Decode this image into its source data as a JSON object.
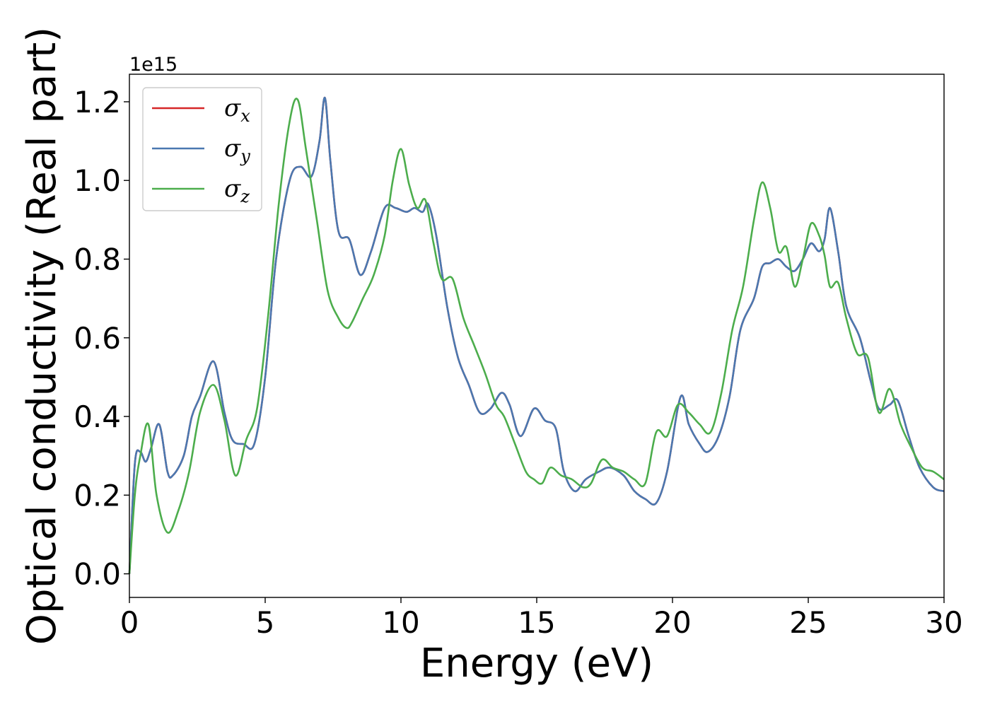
{
  "chart_data": {
    "type": "line",
    "title": "",
    "xlabel": "Energy (eV)",
    "ylabel": "Optical conductivity (Real part)",
    "y_offset_label": "1e15",
    "y_scale": 1000000000000000.0,
    "xlim": [
      0,
      30
    ],
    "ylim": [
      -0.06,
      1.27
    ],
    "xticks": [
      0,
      5,
      10,
      15,
      20,
      25,
      30
    ],
    "xtick_labels": [
      "0",
      "5",
      "10",
      "15",
      "20",
      "25",
      "30"
    ],
    "yticks": [
      0.0,
      0.2,
      0.4,
      0.6,
      0.8,
      1.0,
      1.2
    ],
    "ytick_labels": [
      "0.0",
      "0.2",
      "0.4",
      "0.6",
      "0.8",
      "1.0",
      "1.2"
    ],
    "grid": false,
    "legend_position": "top-left",
    "series": [
      {
        "name": "σx",
        "symbol": "σ",
        "subscript": "x",
        "color": "#d62728",
        "x": [
          0,
          0.2,
          0.4,
          0.6,
          0.8,
          1.1,
          1.4,
          1.6,
          2.0,
          2.3,
          2.6,
          3.1,
          3.5,
          3.8,
          4.2,
          4.6,
          5.0,
          5.4,
          5.9,
          6.3,
          6.7,
          7.0,
          7.2,
          7.4,
          7.7,
          8.1,
          8.5,
          8.9,
          9.4,
          9.8,
          10.2,
          10.5,
          10.8,
          11.0,
          11.3,
          11.7,
          12.1,
          12.5,
          12.9,
          13.3,
          13.7,
          14.0,
          14.4,
          14.9,
          15.3,
          15.7,
          16.0,
          16.4,
          16.8,
          17.3,
          17.7,
          18.2,
          18.6,
          19.0,
          19.4,
          19.8,
          20.3,
          20.6,
          21.0,
          21.3,
          21.7,
          22.1,
          22.5,
          23.0,
          23.3,
          23.6,
          23.9,
          24.2,
          24.5,
          24.8,
          25.1,
          25.4,
          25.6,
          25.8,
          26.1,
          26.4,
          26.9,
          27.3,
          27.6,
          28.0,
          28.3,
          28.7,
          29.1,
          29.6,
          30.0
        ],
        "y": [
          0.0,
          0.28,
          0.31,
          0.285,
          0.32,
          0.38,
          0.26,
          0.25,
          0.3,
          0.4,
          0.45,
          0.54,
          0.41,
          0.34,
          0.33,
          0.33,
          0.5,
          0.8,
          1.0,
          1.035,
          1.01,
          1.1,
          1.21,
          1.05,
          0.87,
          0.85,
          0.76,
          0.82,
          0.93,
          0.93,
          0.92,
          0.93,
          0.92,
          0.94,
          0.86,
          0.68,
          0.55,
          0.48,
          0.41,
          0.42,
          0.46,
          0.43,
          0.35,
          0.42,
          0.39,
          0.37,
          0.26,
          0.21,
          0.24,
          0.26,
          0.27,
          0.25,
          0.21,
          0.19,
          0.18,
          0.26,
          0.45,
          0.38,
          0.33,
          0.31,
          0.35,
          0.45,
          0.62,
          0.7,
          0.78,
          0.79,
          0.8,
          0.78,
          0.77,
          0.8,
          0.84,
          0.82,
          0.85,
          0.93,
          0.82,
          0.68,
          0.6,
          0.49,
          0.42,
          0.43,
          0.44,
          0.35,
          0.27,
          0.22,
          0.21
        ]
      },
      {
        "name": "σy",
        "symbol": "σ",
        "subscript": "y",
        "color": "#4a78b0",
        "x": [
          0,
          0.2,
          0.4,
          0.6,
          0.8,
          1.1,
          1.4,
          1.6,
          2.0,
          2.3,
          2.6,
          3.1,
          3.5,
          3.8,
          4.2,
          4.6,
          5.0,
          5.4,
          5.9,
          6.3,
          6.7,
          7.0,
          7.2,
          7.4,
          7.7,
          8.1,
          8.5,
          8.9,
          9.4,
          9.8,
          10.2,
          10.5,
          10.8,
          11.0,
          11.3,
          11.7,
          12.1,
          12.5,
          12.9,
          13.3,
          13.7,
          14.0,
          14.4,
          14.9,
          15.3,
          15.7,
          16.0,
          16.4,
          16.8,
          17.3,
          17.7,
          18.2,
          18.6,
          19.0,
          19.4,
          19.8,
          20.3,
          20.6,
          21.0,
          21.3,
          21.7,
          22.1,
          22.5,
          23.0,
          23.3,
          23.6,
          23.9,
          24.2,
          24.5,
          24.8,
          25.1,
          25.4,
          25.6,
          25.8,
          26.1,
          26.4,
          26.9,
          27.3,
          27.6,
          28.0,
          28.3,
          28.7,
          29.1,
          29.6,
          30.0
        ],
        "y": [
          0.0,
          0.28,
          0.31,
          0.285,
          0.32,
          0.38,
          0.26,
          0.25,
          0.3,
          0.4,
          0.45,
          0.54,
          0.41,
          0.34,
          0.33,
          0.33,
          0.5,
          0.8,
          1.0,
          1.035,
          1.01,
          1.1,
          1.21,
          1.05,
          0.87,
          0.85,
          0.76,
          0.82,
          0.93,
          0.93,
          0.92,
          0.93,
          0.92,
          0.94,
          0.86,
          0.68,
          0.55,
          0.48,
          0.41,
          0.42,
          0.46,
          0.43,
          0.35,
          0.42,
          0.39,
          0.37,
          0.26,
          0.21,
          0.24,
          0.26,
          0.27,
          0.25,
          0.21,
          0.19,
          0.18,
          0.26,
          0.45,
          0.38,
          0.33,
          0.31,
          0.35,
          0.45,
          0.62,
          0.7,
          0.78,
          0.79,
          0.8,
          0.78,
          0.77,
          0.8,
          0.84,
          0.82,
          0.85,
          0.93,
          0.82,
          0.68,
          0.6,
          0.49,
          0.42,
          0.43,
          0.44,
          0.35,
          0.27,
          0.22,
          0.21
        ]
      },
      {
        "name": "σz",
        "symbol": "σ",
        "subscript": "z",
        "color": "#4cad4c",
        "x": [
          0,
          0.2,
          0.4,
          0.7,
          1.0,
          1.4,
          1.8,
          2.2,
          2.6,
          3.1,
          3.5,
          3.9,
          4.3,
          4.7,
          5.1,
          5.5,
          5.9,
          6.2,
          6.5,
          6.9,
          7.3,
          7.7,
          8.0,
          8.2,
          8.6,
          9.0,
          9.4,
          9.7,
          10.0,
          10.3,
          10.6,
          10.9,
          11.2,
          11.5,
          11.9,
          12.3,
          12.7,
          13.1,
          13.5,
          13.8,
          14.2,
          14.6,
          14.9,
          15.2,
          15.5,
          15.9,
          16.3,
          16.7,
          17.0,
          17.4,
          17.8,
          18.2,
          18.6,
          19.0,
          19.4,
          19.8,
          20.2,
          20.6,
          21.0,
          21.4,
          21.8,
          22.2,
          22.6,
          23.0,
          23.3,
          23.6,
          23.9,
          24.2,
          24.5,
          24.8,
          25.1,
          25.4,
          25.6,
          25.8,
          26.1,
          26.4,
          26.8,
          27.2,
          27.6,
          28.0,
          28.4,
          28.8,
          29.2,
          29.6,
          30.0
        ],
        "y": [
          0.0,
          0.2,
          0.3,
          0.38,
          0.2,
          0.105,
          0.16,
          0.26,
          0.41,
          0.48,
          0.39,
          0.25,
          0.34,
          0.42,
          0.65,
          0.94,
          1.15,
          1.205,
          1.08,
          0.9,
          0.72,
          0.65,
          0.625,
          0.64,
          0.7,
          0.76,
          0.86,
          1.0,
          1.08,
          0.99,
          0.93,
          0.95,
          0.84,
          0.75,
          0.75,
          0.65,
          0.58,
          0.51,
          0.43,
          0.4,
          0.33,
          0.26,
          0.24,
          0.23,
          0.27,
          0.25,
          0.24,
          0.22,
          0.23,
          0.29,
          0.27,
          0.26,
          0.24,
          0.23,
          0.36,
          0.35,
          0.43,
          0.41,
          0.38,
          0.36,
          0.46,
          0.62,
          0.73,
          0.9,
          0.995,
          0.93,
          0.82,
          0.83,
          0.73,
          0.8,
          0.89,
          0.86,
          0.81,
          0.73,
          0.74,
          0.65,
          0.56,
          0.55,
          0.41,
          0.47,
          0.38,
          0.32,
          0.27,
          0.26,
          0.24
        ]
      }
    ]
  }
}
